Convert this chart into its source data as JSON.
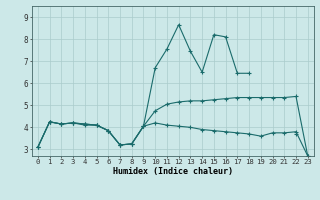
{
  "xlabel": "Humidex (Indice chaleur)",
  "bg_color": "#cce8e8",
  "line_color": "#1a6b6b",
  "xlim": [
    -0.5,
    23.5
  ],
  "ylim": [
    2.7,
    9.5
  ],
  "yticks": [
    3,
    4,
    5,
    6,
    7,
    8,
    9
  ],
  "xticks": [
    0,
    1,
    2,
    3,
    4,
    5,
    6,
    7,
    8,
    9,
    10,
    11,
    12,
    13,
    14,
    15,
    16,
    17,
    18,
    19,
    20,
    21,
    22,
    23
  ],
  "line1_x": [
    0,
    1,
    2,
    3,
    4,
    5,
    6,
    7,
    8,
    9,
    10,
    11,
    12,
    13,
    14,
    15,
    16,
    17,
    18
  ],
  "line1_y": [
    3.1,
    4.25,
    4.15,
    4.2,
    4.1,
    4.1,
    3.85,
    3.2,
    3.25,
    4.05,
    6.7,
    7.55,
    8.65,
    7.45,
    6.5,
    8.2,
    8.1,
    6.45,
    6.45
  ],
  "line1b_x": [
    22
  ],
  "line1b_y": [
    3.7
  ],
  "line2_x": [
    0,
    1,
    2,
    3,
    4,
    5,
    6,
    7,
    8,
    9,
    10,
    11,
    12,
    13,
    14,
    15,
    16,
    17,
    18,
    19,
    20,
    21,
    22,
    23
  ],
  "line2_y": [
    3.1,
    4.25,
    4.15,
    4.2,
    4.15,
    4.1,
    3.85,
    3.2,
    3.25,
    4.05,
    4.75,
    5.05,
    5.15,
    5.2,
    5.2,
    5.25,
    5.3,
    5.35,
    5.35,
    5.35,
    5.35,
    5.35,
    5.4,
    2.7
  ],
  "line3_x": [
    0,
    1,
    2,
    3,
    4,
    5,
    6,
    7,
    8,
    9,
    10,
    11,
    12,
    13,
    14,
    15,
    16,
    17,
    18,
    19,
    20,
    21,
    22,
    23
  ],
  "line3_y": [
    3.1,
    4.25,
    4.15,
    4.2,
    4.15,
    4.1,
    3.85,
    3.2,
    3.25,
    4.05,
    4.2,
    4.1,
    4.05,
    4.0,
    3.9,
    3.85,
    3.8,
    3.75,
    3.7,
    3.6,
    3.75,
    3.75,
    3.8,
    2.7
  ],
  "grid_color": "#aacccc",
  "xlabel_fontsize": 6.0,
  "tick_fontsize": 5.2
}
